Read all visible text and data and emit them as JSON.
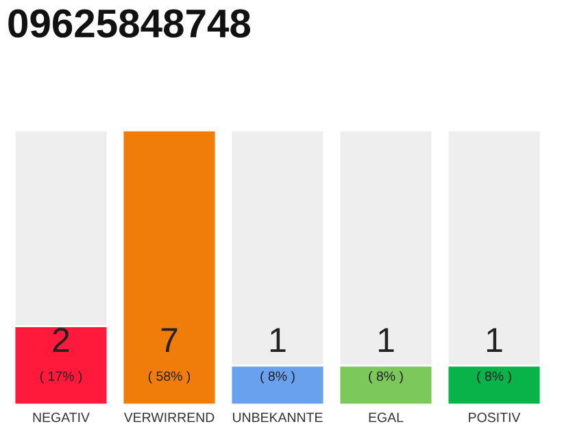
{
  "chart_data": {
    "type": "bar",
    "title": "09625848748",
    "stacked": true,
    "categories": [
      "NEGATIV",
      "VERWIRREND",
      "UNBEKANNTE",
      "EGAL",
      "POSITIV"
    ],
    "series": [
      {
        "colors": [
          "#ff1a3c",
          "#f07d0a",
          "#6aa1ef",
          "#7cc85a",
          "#0ab34a"
        ],
        "values": [
          2,
          7,
          1,
          1,
          1
        ],
        "value_labels": [
          "2",
          "7",
          "1",
          "1",
          "1"
        ]
      },
      {
        "color": "#eeeeee",
        "values": [
          5,
          null,
          6,
          6,
          6
        ]
      }
    ],
    "annotations": [
      "( 17% )",
      "( 58% )",
      "( 8% )",
      "( 8% )",
      "( 8% )"
    ]
  }
}
